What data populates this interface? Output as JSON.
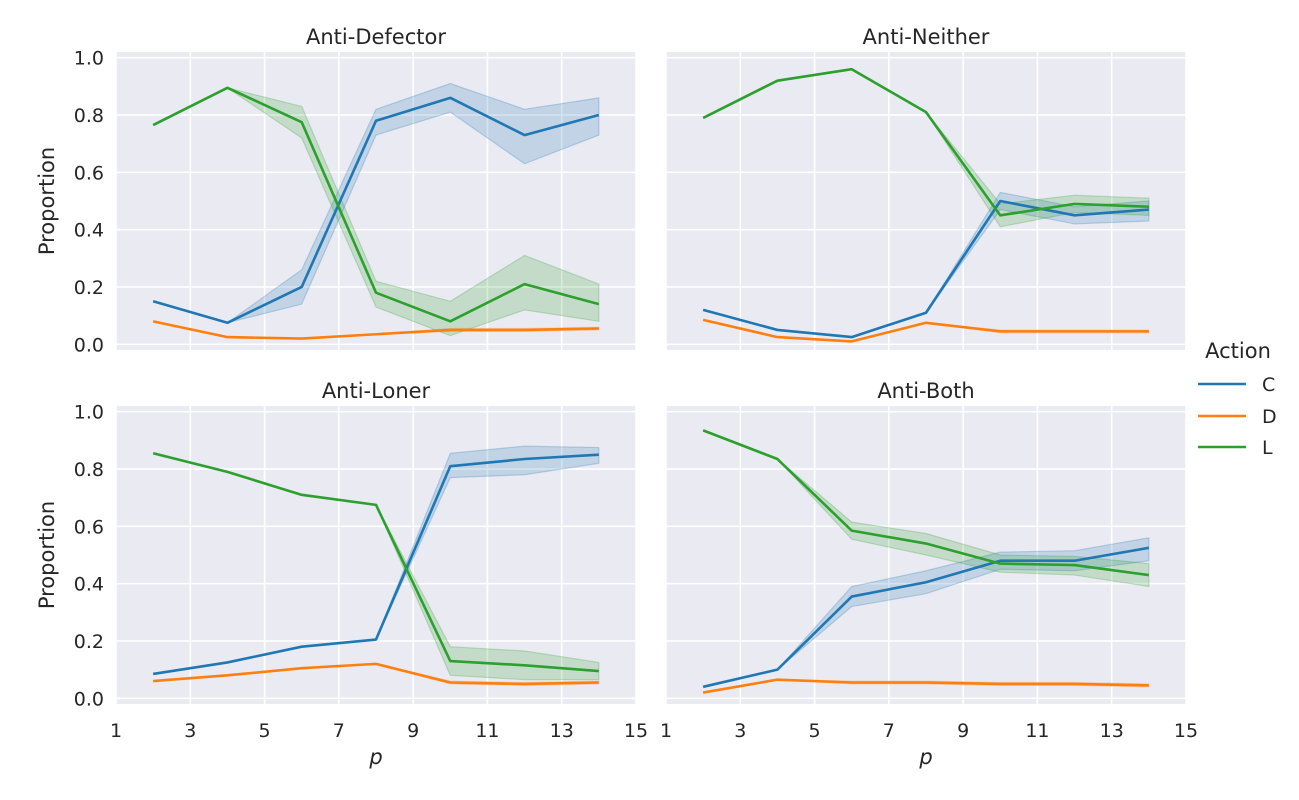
{
  "chart_data": {
    "type": "line",
    "x": [
      2,
      4,
      6,
      8,
      10,
      12,
      14
    ],
    "xlabel": "p",
    "ylabel": "Proportion",
    "xlim": [
      1,
      15
    ],
    "ylim": [
      -0.02,
      1.02
    ],
    "xticks": [
      "1",
      "3",
      "5",
      "7",
      "9",
      "11",
      "13",
      "15"
    ],
    "yticks": [
      "0.0",
      "0.2",
      "0.4",
      "0.6",
      "0.8",
      "1.0"
    ],
    "grid": true,
    "legend": {
      "title": "Action",
      "placement": "right",
      "entries": [
        {
          "label": "C",
          "color": "#1f77b4"
        },
        {
          "label": "D",
          "color": "#ff7f0e"
        },
        {
          "label": "L",
          "color": "#2ca02c"
        }
      ]
    },
    "panels": [
      {
        "title": "Anti-Defector",
        "series": [
          {
            "name": "C",
            "color": "#1f77b4",
            "values": [
              0.15,
              0.075,
              0.2,
              0.78,
              0.86,
              0.73,
              0.8
            ],
            "lower": [
              0.15,
              0.075,
              0.14,
              0.73,
              0.81,
              0.63,
              0.73
            ],
            "upper": [
              0.15,
              0.075,
              0.26,
              0.82,
              0.91,
              0.82,
              0.86
            ]
          },
          {
            "name": "D",
            "color": "#ff7f0e",
            "values": [
              0.08,
              0.025,
              0.02,
              0.035,
              0.05,
              0.05,
              0.055
            ],
            "lower": [
              0.08,
              0.025,
              0.02,
              0.035,
              0.045,
              0.045,
              0.05
            ],
            "upper": [
              0.08,
              0.025,
              0.02,
              0.035,
              0.055,
              0.055,
              0.06
            ]
          },
          {
            "name": "L",
            "color": "#2ca02c",
            "values": [
              0.765,
              0.895,
              0.775,
              0.18,
              0.08,
              0.21,
              0.14
            ],
            "lower": [
              0.765,
              0.895,
              0.72,
              0.13,
              0.03,
              0.12,
              0.08
            ],
            "upper": [
              0.765,
              0.895,
              0.83,
              0.22,
              0.15,
              0.31,
              0.21
            ]
          }
        ]
      },
      {
        "title": "Anti-Neither",
        "series": [
          {
            "name": "C",
            "color": "#1f77b4",
            "values": [
              0.12,
              0.05,
              0.025,
              0.11,
              0.5,
              0.45,
              0.47
            ],
            "lower": [
              0.12,
              0.05,
              0.025,
              0.11,
              0.47,
              0.42,
              0.43
            ],
            "upper": [
              0.12,
              0.05,
              0.025,
              0.11,
              0.53,
              0.48,
              0.5
            ]
          },
          {
            "name": "D",
            "color": "#ff7f0e",
            "values": [
              0.085,
              0.025,
              0.01,
              0.075,
              0.045,
              0.045,
              0.045
            ],
            "lower": [
              0.085,
              0.025,
              0.01,
              0.075,
              0.04,
              0.04,
              0.04
            ],
            "upper": [
              0.085,
              0.025,
              0.01,
              0.075,
              0.05,
              0.05,
              0.05
            ]
          },
          {
            "name": "L",
            "color": "#2ca02c",
            "values": [
              0.79,
              0.92,
              0.96,
              0.81,
              0.45,
              0.49,
              0.48
            ],
            "lower": [
              0.79,
              0.92,
              0.96,
              0.81,
              0.41,
              0.46,
              0.45
            ],
            "upper": [
              0.79,
              0.92,
              0.96,
              0.81,
              0.49,
              0.52,
              0.51
            ]
          }
        ]
      },
      {
        "title": "Anti-Loner",
        "series": [
          {
            "name": "C",
            "color": "#1f77b4",
            "values": [
              0.085,
              0.125,
              0.18,
              0.205,
              0.81,
              0.835,
              0.85
            ],
            "lower": [
              0.085,
              0.125,
              0.18,
              0.205,
              0.77,
              0.78,
              0.82
            ],
            "upper": [
              0.085,
              0.125,
              0.18,
              0.205,
              0.855,
              0.88,
              0.875
            ]
          },
          {
            "name": "D",
            "color": "#ff7f0e",
            "values": [
              0.06,
              0.08,
              0.105,
              0.12,
              0.055,
              0.05,
              0.055
            ],
            "lower": [
              0.06,
              0.08,
              0.105,
              0.12,
              0.05,
              0.045,
              0.05
            ],
            "upper": [
              0.06,
              0.08,
              0.105,
              0.12,
              0.06,
              0.055,
              0.06
            ]
          },
          {
            "name": "L",
            "color": "#2ca02c",
            "values": [
              0.855,
              0.79,
              0.71,
              0.675,
              0.13,
              0.115,
              0.095
            ],
            "lower": [
              0.855,
              0.79,
              0.71,
              0.675,
              0.08,
              0.065,
              0.065
            ],
            "upper": [
              0.855,
              0.79,
              0.71,
              0.675,
              0.18,
              0.165,
              0.125
            ]
          }
        ]
      },
      {
        "title": "Anti-Both",
        "series": [
          {
            "name": "C",
            "color": "#1f77b4",
            "values": [
              0.04,
              0.1,
              0.355,
              0.405,
              0.48,
              0.48,
              0.525
            ],
            "lower": [
              0.04,
              0.1,
              0.32,
              0.365,
              0.45,
              0.445,
              0.48
            ],
            "upper": [
              0.04,
              0.1,
              0.39,
              0.445,
              0.51,
              0.515,
              0.56
            ]
          },
          {
            "name": "D",
            "color": "#ff7f0e",
            "values": [
              0.02,
              0.065,
              0.055,
              0.055,
              0.05,
              0.05,
              0.045
            ],
            "lower": [
              0.02,
              0.065,
              0.05,
              0.05,
              0.045,
              0.045,
              0.04
            ],
            "upper": [
              0.02,
              0.065,
              0.06,
              0.06,
              0.055,
              0.055,
              0.05
            ]
          },
          {
            "name": "L",
            "color": "#2ca02c",
            "values": [
              0.935,
              0.835,
              0.585,
              0.54,
              0.47,
              0.465,
              0.43
            ],
            "lower": [
              0.935,
              0.835,
              0.555,
              0.5,
              0.44,
              0.43,
              0.39
            ],
            "upper": [
              0.935,
              0.835,
              0.615,
              0.575,
              0.5,
              0.495,
              0.47
            ]
          }
        ]
      }
    ]
  }
}
